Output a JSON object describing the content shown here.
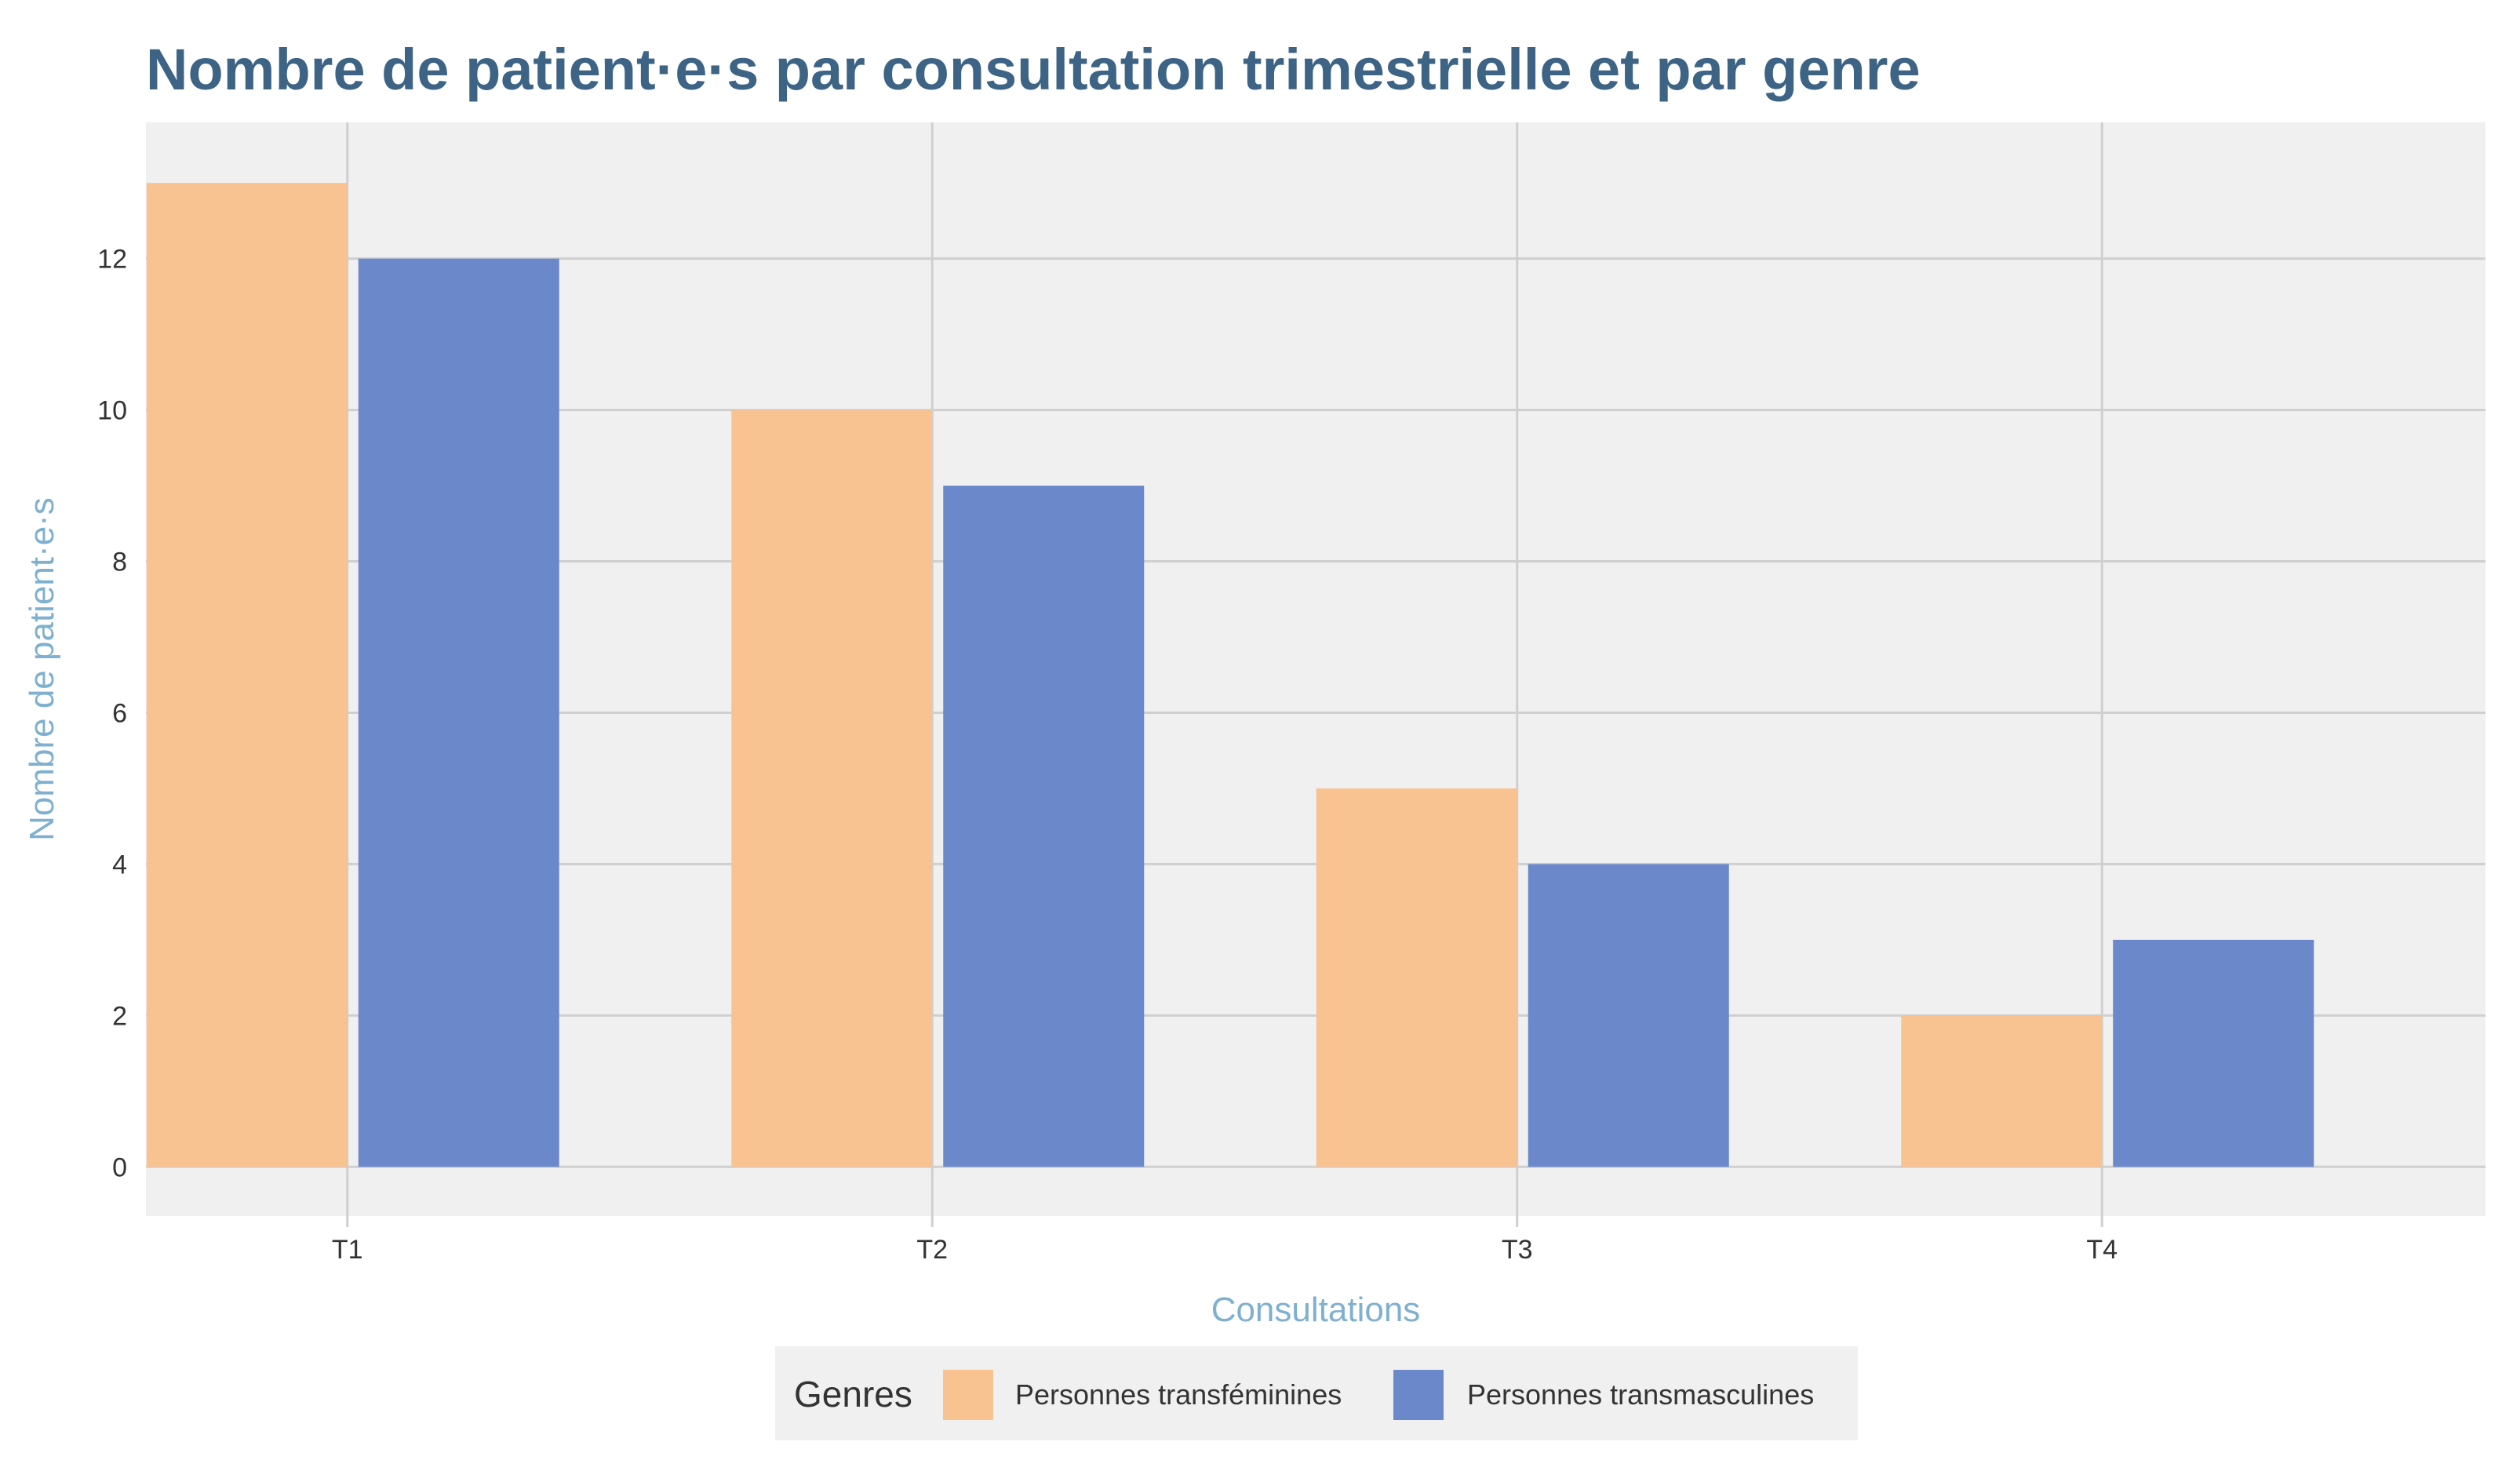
{
  "chart_data": {
    "type": "bar",
    "title": "Nombre de patient·e·s par consultation trimestrielle et par genre",
    "xlabel": "Consultations",
    "ylabel": "Nombre de patient·e·s",
    "categories": [
      "T1",
      "T2",
      "T3",
      "T4"
    ],
    "series": [
      {
        "name": "Personnes transféminines",
        "values": [
          13,
          10,
          5,
          2
        ],
        "color": "#f8c291"
      },
      {
        "name": "Personnes transmasculines",
        "values": [
          12,
          9,
          4,
          3
        ],
        "color": "#6b88cb"
      }
    ],
    "yticks": [
      0,
      2,
      4,
      6,
      8,
      10,
      12
    ],
    "ylim": [
      -0.65,
      13.8
    ],
    "grid": true,
    "legend": {
      "title": "Genres",
      "placement": "bottom"
    },
    "colors": {
      "panel_background": "#f0f0f0",
      "grid": "#cfcfcf",
      "title": "#3d6385",
      "axis_title": "#7fb0cf"
    }
  }
}
